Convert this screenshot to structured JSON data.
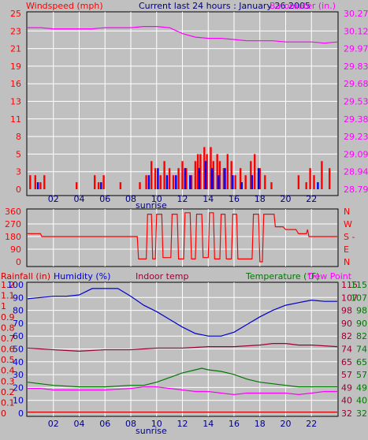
{
  "header": {
    "left_label": "Windspeed (mph)",
    "title": "Current last 24 hours : January 26 2005",
    "right_label": "Barometer (in.)"
  },
  "colors": {
    "panel_bg": "#c0c0c0",
    "grid": "#ffffff",
    "wind": "#ff0000",
    "gust": "#0000ff",
    "barometer": "#ff00ff",
    "humidity": "#0000cc",
    "indoor": "#990033",
    "temperature": "#007700",
    "dewpoint": "#ff00ff",
    "rainfall": "#cc0000"
  },
  "chart_data": [
    {
      "type": "line",
      "panel": "wind-barometer",
      "title": "Current last 24 hours : January 26 2005",
      "xlabel": "sunrise",
      "x_ticks": [
        "02",
        "04",
        "06",
        "08",
        "10",
        "12",
        "14",
        "16",
        "18",
        "20",
        "22"
      ],
      "x_range": [
        0,
        24
      ],
      "grid": true,
      "left_axis": {
        "label": "Windspeed (mph)",
        "ticks": [
          "0",
          "3",
          "5",
          "8",
          "11",
          "13",
          "16",
          "19",
          "21",
          "23",
          "25"
        ],
        "ylim": [
          0,
          25
        ]
      },
      "right_axis": {
        "label": "Barometer (in.)",
        "ticks": [
          "28.79",
          "28.94",
          "29.09",
          "29.23",
          "29.38",
          "29.53",
          "29.68",
          "29.83",
          "29.97",
          "30.12",
          "30.27"
        ],
        "ylim": [
          28.79,
          30.27
        ]
      },
      "series": [
        {
          "name": "Barometer (in.)",
          "axis": "right",
          "x": [
            0,
            1,
            2,
            3,
            4,
            5,
            6,
            7,
            8,
            9,
            10,
            11,
            12,
            13,
            14,
            15,
            16,
            17,
            18,
            19,
            20,
            21,
            22,
            23,
            24
          ],
          "values": [
            30.15,
            30.15,
            30.14,
            30.14,
            30.14,
            30.14,
            30.15,
            30.15,
            30.15,
            30.16,
            30.16,
            30.15,
            30.1,
            30.07,
            30.06,
            30.06,
            30.05,
            30.04,
            30.04,
            30.04,
            30.03,
            30.03,
            30.03,
            30.02,
            30.03
          ]
        },
        {
          "name": "Windspeed",
          "axis": "left",
          "style": "bars",
          "x": [
            0.2,
            0.6,
            1,
            1.3,
            3.8,
            5.2,
            5.5,
            5.9,
            7.2,
            8.7,
            9.2,
            9.6,
            9.9,
            10.3,
            10.6,
            11,
            11.3,
            11.7,
            12,
            12.3,
            12.7,
            13,
            13.2,
            13.4,
            13.7,
            13.9,
            14.2,
            14.4,
            14.7,
            14.9,
            15.2,
            15.5,
            15.8,
            16.1,
            16.5,
            16.9,
            17.3,
            17.6,
            18,
            18.4,
            18.9,
            21,
            21.6,
            21.9,
            22.2,
            22.8,
            23.4
          ],
          "values": [
            2,
            2,
            1,
            2,
            1,
            2,
            1,
            2,
            1,
            1,
            2,
            4,
            3,
            2,
            4,
            3,
            2,
            3,
            4,
            3,
            2,
            4,
            5,
            5,
            6,
            5,
            6,
            4,
            5,
            4,
            3,
            5,
            4,
            2,
            3,
            2,
            4,
            5,
            3,
            2,
            1,
            2,
            1,
            3,
            2,
            4,
            3
          ]
        },
        {
          "name": "Gust",
          "axis": "left",
          "style": "bars",
          "x": [
            0.8,
            5.7,
            9.4,
            10.1,
            10.8,
            11.5,
            12.2,
            12.6,
            13.3,
            13.8,
            14.3,
            14.8,
            15.3,
            15.9,
            16.6,
            17.4,
            17.9,
            22.5
          ],
          "values": [
            1,
            1,
            2,
            3,
            2,
            2,
            3,
            2,
            3,
            4,
            3,
            2,
            3,
            2,
            1,
            2,
            3,
            1
          ]
        }
      ]
    },
    {
      "type": "line",
      "panel": "wind-direction",
      "x_range": [
        0,
        24
      ],
      "grid": true,
      "left_axis": {
        "ticks": [
          "0",
          "90",
          "180",
          "270",
          "360"
        ],
        "ylim": [
          0,
          360
        ]
      },
      "right_axis": {
        "ticks": [
          "N",
          "E",
          "S -",
          "W",
          "N"
        ]
      },
      "series": [
        {
          "name": "Wind direction",
          "x": [
            0,
            1,
            1.1,
            8.5,
            8.6,
            9.2,
            9.3,
            9.6,
            9.7,
            9.9,
            10,
            10.4,
            10.5,
            11.1,
            11.2,
            11.6,
            11.7,
            12.1,
            12.2,
            12.6,
            12.7,
            13.0,
            13.1,
            13.5,
            13.6,
            14.0,
            14.1,
            14.4,
            14.5,
            14.9,
            15.0,
            15.3,
            15.4,
            15.8,
            15.9,
            16.2,
            16.3,
            17.4,
            17.5,
            17.9,
            18.0,
            18.2,
            18.3,
            19.1,
            19.2,
            19.8,
            20.0,
            20.8,
            21.0,
            21.6,
            21.7,
            21.8,
            22.3,
            22.4,
            24
          ],
          "values": [
            200,
            200,
            180,
            180,
            20,
            20,
            340,
            340,
            20,
            20,
            340,
            340,
            30,
            30,
            340,
            340,
            20,
            20,
            350,
            350,
            20,
            20,
            340,
            340,
            30,
            30,
            350,
            350,
            20,
            20,
            340,
            340,
            20,
            20,
            340,
            340,
            20,
            20,
            340,
            340,
            0,
            0,
            340,
            340,
            250,
            250,
            230,
            230,
            200,
            200,
            230,
            180,
            180,
            180,
            180
          ]
        }
      ]
    },
    {
      "type": "line",
      "panel": "temperature-humidity",
      "xlabel": "sunrise",
      "x_ticks": [
        "02",
        "04",
        "06",
        "08",
        "10",
        "12",
        "14",
        "16",
        "18",
        "20",
        "22"
      ],
      "x_range": [
        0,
        24
      ],
      "grid": true,
      "labels": [
        "Rainfall (in)",
        "Humidity (%)",
        "Indoor temp",
        "Temperature (°F)",
        "Dew Point"
      ],
      "axes": {
        "rainfall_ticks": [
          "0",
          "0.1",
          "0.2",
          "0.3",
          "0.4",
          "0.5",
          "0.6",
          "0.7",
          "0.8",
          "0.9",
          "1",
          "1.1",
          "1.2"
        ],
        "humidity_ticks": [
          "0",
          "10",
          "20",
          "30",
          "40",
          "50",
          "60",
          "70",
          "80",
          "90",
          "100"
        ],
        "indoor_ticks": [
          "32",
          "40",
          "49",
          "57",
          "65",
          "74",
          "82",
          "90",
          "98",
          "107",
          "115"
        ],
        "temperature_ticks": [
          "32",
          "40",
          "49",
          "57",
          "65",
          "74",
          "82",
          "90",
          "98",
          "107",
          "115"
        ],
        "ylim_temperature": [
          32,
          115
        ],
        "ylim_humidity": [
          0,
          100
        ],
        "ylim_rainfall": [
          0,
          1.2
        ]
      },
      "series": [
        {
          "name": "Humidity (%)",
          "axis": "humidity",
          "x": [
            0,
            1,
            2,
            3,
            4,
            5,
            6,
            7,
            8,
            9,
            10,
            11,
            12,
            13,
            14,
            15,
            16,
            17,
            18,
            19,
            20,
            21,
            22,
            23,
            24
          ],
          "values": [
            89,
            90,
            91,
            91,
            92,
            97,
            97,
            97,
            91,
            84,
            79,
            73,
            67,
            62,
            60,
            60,
            63,
            69,
            75,
            80,
            84,
            86,
            88,
            87,
            87
          ]
        },
        {
          "name": "Indoor temp",
          "axis": "temperature",
          "x": [
            0,
            2,
            4,
            6,
            8,
            10,
            12,
            14,
            16,
            18,
            19,
            20,
            21,
            22,
            24
          ],
          "values": [
            74,
            73,
            72,
            73,
            73,
            74,
            74,
            75,
            75,
            76,
            77,
            77,
            76,
            76,
            75
          ]
        },
        {
          "name": "Temperature (°F)",
          "axis": "temperature",
          "x": [
            0,
            1,
            2,
            4,
            6,
            8,
            9,
            10,
            11,
            12,
            13,
            13.5,
            14,
            15,
            16,
            17,
            18,
            19,
            20,
            21,
            22,
            23,
            24
          ],
          "values": [
            52,
            51,
            50,
            49,
            49,
            50,
            50,
            52,
            55,
            58,
            60,
            61,
            60,
            59,
            57,
            54,
            52,
            51,
            50,
            49,
            49,
            49,
            49
          ]
        },
        {
          "name": "Dew Point",
          "axis": "temperature",
          "x": [
            0,
            1,
            2,
            4,
            6,
            8,
            9,
            10,
            11,
            12,
            13,
            14,
            15,
            16,
            17,
            18,
            19,
            20,
            21,
            22,
            23,
            24
          ],
          "values": [
            48,
            48,
            47,
            47,
            47,
            48,
            49,
            49,
            48,
            47,
            46,
            46,
            45,
            44,
            45,
            45,
            45,
            45,
            44,
            45,
            46,
            46
          ]
        },
        {
          "name": "Rainfall (in)",
          "axis": "rainfall",
          "x": [
            0,
            24
          ],
          "values": [
            0.01,
            0.01
          ]
        }
      ]
    }
  ]
}
